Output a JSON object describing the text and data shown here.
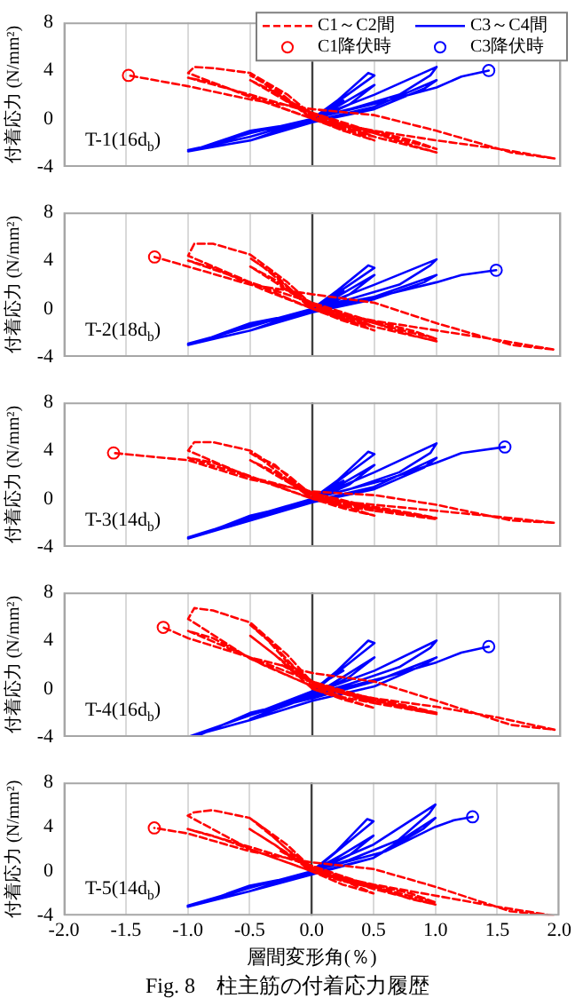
{
  "chart_data": [
    {
      "type": "line",
      "ylabel": "付着応力 (N/mm²)",
      "xlim": [
        -2,
        2
      ],
      "xticks": [
        -2,
        -1.5,
        -1,
        -0.5,
        0,
        0.5,
        1,
        1.5,
        2
      ],
      "ylim": [
        -4,
        8
      ],
      "yticks": [
        -4,
        0,
        4,
        8
      ],
      "grid": "x",
      "tick_labels": "y",
      "legend": "top right",
      "ref_lines": [
        {
          "axis": "x",
          "value": 0,
          "color": "#404040"
        }
      ],
      "annotations": [
        "T-1(16d$_{b}$)"
      ],
      "series": [
        {
          "name": "C1～C2間",
          "color": "#ff0000",
          "line_style": "dashed",
          "marker": "none",
          "x": [
            0,
            0.25,
            0.1,
            0,
            -0.25,
            -0.1,
            0,
            0.5,
            0.25,
            0,
            -0.3,
            -0.5,
            -0.4,
            -0.2,
            0,
            0.25,
            0.5,
            0.25,
            0,
            -0.3,
            -0.5,
            -0.3,
            0,
            0.5,
            1.0,
            0.8,
            0.5,
            0,
            -0.5,
            -1.0,
            -0.95,
            -0.8,
            -0.5,
            -0.2,
            0,
            0.5,
            1.0,
            0.8,
            0.4,
            0,
            -0.5,
            -1.0,
            -0.8,
            -0.4,
            0,
            0.5,
            1.0,
            1.5,
            1.95,
            1.6,
            1.0,
            0.5,
            0,
            -0.5,
            -1.0,
            -1.48
          ],
          "values": [
            0,
            -0.8,
            -0.3,
            0.3,
            1.8,
            1.0,
            0.5,
            -1.5,
            -0.9,
            0,
            2.5,
            3.6,
            3.0,
            1.5,
            0.4,
            -0.8,
            -1.8,
            -1.0,
            0,
            2.2,
            3.2,
            2.0,
            0.2,
            -1.5,
            -2.8,
            -2.2,
            -1.2,
            0,
            1.8,
            3.8,
            4.3,
            4.2,
            3.8,
            2.0,
            0.3,
            -1.2,
            -2.5,
            -1.8,
            -0.8,
            0.5,
            2.0,
            3.4,
            3.0,
            1.5,
            0,
            -1.0,
            -1.8,
            -2.5,
            -3.3,
            -2.8,
            -1.0,
            0.3,
            0.8,
            1.6,
            2.7,
            3.6
          ]
        },
        {
          "name": "C3～C4間",
          "color": "#0000ff",
          "line_style": "solid",
          "marker": "none",
          "x": [
            0,
            0.25,
            0.1,
            0,
            -0.25,
            0,
            0.5,
            0.45,
            0.2,
            0,
            -0.5,
            -0.2,
            0,
            0.5,
            0.3,
            0,
            -0.5,
            0,
            0.5,
            1.0,
            0.95,
            0.7,
            0.3,
            0,
            -0.5,
            -1.0,
            -0.9,
            -0.5,
            0,
            0.5,
            1.0,
            0.9,
            0.5,
            0,
            -0.5,
            -1.0,
            -0.5,
            0,
            0.6,
            1.0,
            1.2,
            1.42
          ],
          "values": [
            0,
            1.5,
            0.6,
            0,
            -0.8,
            -0.1,
            3.6,
            3.8,
            1.5,
            0,
            -1.5,
            -0.6,
            -0.2,
            2.8,
            1.2,
            -0.2,
            -1.8,
            0,
            2.0,
            4.3,
            3.6,
            2.0,
            0.8,
            0,
            -1.5,
            -2.6,
            -2.4,
            -1.0,
            -0.2,
            1.0,
            3.2,
            2.5,
            0.8,
            -0.3,
            -1.8,
            -2.7,
            -1.2,
            0,
            1.5,
            2.6,
            3.5,
            4.0
          ]
        },
        {
          "name": "C1降伏時",
          "type": "scatter",
          "color": "#ff0000",
          "marker": "circle",
          "x": [
            -1.48
          ],
          "values": [
            3.6
          ]
        },
        {
          "name": "C3降伏時",
          "type": "scatter",
          "color": "#0000ff",
          "marker": "circle",
          "x": [
            1.42
          ],
          "values": [
            4.0
          ]
        }
      ]
    },
    {
      "type": "line",
      "ylabel": "付着応力 (N/mm²)",
      "xlim": [
        -2,
        2
      ],
      "xticks": [
        -2,
        -1.5,
        -1,
        -0.5,
        0,
        0.5,
        1,
        1.5,
        2
      ],
      "ylim": [
        -4,
        8
      ],
      "yticks": [
        -4,
        0,
        4,
        8
      ],
      "grid": "x",
      "tick_labels": "y",
      "ref_lines": [
        {
          "axis": "x",
          "value": 0,
          "color": "#404040"
        }
      ],
      "annotations": [
        "T-2(18d$_{b}$)"
      ],
      "series": [
        {
          "color": "#ff0000",
          "line_style": "dashed",
          "marker": "none",
          "x": [
            0,
            0.25,
            0.1,
            0,
            -0.25,
            -0.1,
            0,
            0.5,
            0.25,
            0,
            -0.3,
            -0.5,
            -0.4,
            -0.2,
            0,
            0.25,
            0.5,
            0.25,
            0,
            -0.3,
            -0.5,
            -0.3,
            0,
            0.5,
            1.0,
            0.8,
            0.5,
            0,
            -0.5,
            -1.0,
            -0.95,
            -0.8,
            -0.5,
            -0.2,
            0,
            0.5,
            1.0,
            0.8,
            0.4,
            0,
            -0.5,
            -1.0,
            -0.8,
            -0.4,
            0,
            0.5,
            1.0,
            1.5,
            1.95,
            1.6,
            1.0,
            0.5,
            0,
            -0.5,
            -1.0,
            -1.27
          ],
          "values": [
            0,
            -0.8,
            -0.3,
            0.3,
            1.8,
            1.0,
            0.5,
            -1.5,
            -0.9,
            0,
            2.8,
            4.2,
            3.5,
            1.8,
            0.4,
            -0.8,
            -1.8,
            -1.0,
            0,
            2.4,
            3.5,
            2.2,
            0.2,
            -1.5,
            -2.7,
            -2.2,
            -1.2,
            0,
            2.2,
            4.4,
            5.4,
            5.4,
            4.5,
            2.2,
            0.3,
            -1.2,
            -2.5,
            -1.8,
            -0.8,
            0.5,
            2.2,
            4.0,
            3.4,
            1.6,
            0,
            -1.0,
            -1.8,
            -2.6,
            -3.4,
            -3.0,
            -1.2,
            0.5,
            1.2,
            2.0,
            3.5,
            4.3
          ]
        },
        {
          "color": "#0000ff",
          "line_style": "solid",
          "marker": "none",
          "x": [
            0,
            0.25,
            0.1,
            0,
            -0.25,
            0,
            0.5,
            0.45,
            0.2,
            0,
            -0.5,
            -0.2,
            0,
            0.5,
            0.3,
            0,
            -0.5,
            0,
            0.5,
            1.0,
            0.95,
            0.7,
            0.3,
            0,
            -0.5,
            -1.0,
            -0.9,
            -0.5,
            0,
            0.5,
            1.0,
            0.9,
            0.5,
            0,
            -0.5,
            -1.0,
            -0.5,
            0,
            0.6,
            1.0,
            1.2,
            1.48
          ],
          "values": [
            0,
            1.5,
            0.6,
            0,
            -0.8,
            -0.1,
            3.4,
            3.6,
            1.5,
            0,
            -1.5,
            -0.6,
            -0.2,
            2.8,
            1.2,
            -0.2,
            -1.8,
            0,
            2.0,
            4.1,
            3.6,
            2.0,
            0.8,
            0,
            -1.5,
            -2.9,
            -2.7,
            -1.2,
            -0.2,
            1.0,
            2.8,
            2.2,
            0.8,
            -0.3,
            -1.8,
            -3.0,
            -1.4,
            0,
            1.2,
            2.2,
            2.8,
            3.2
          ]
        },
        {
          "type": "scatter",
          "color": "#ff0000",
          "marker": "circle",
          "x": [
            -1.27
          ],
          "values": [
            4.3
          ]
        },
        {
          "type": "scatter",
          "color": "#0000ff",
          "marker": "circle",
          "x": [
            1.48
          ],
          "values": [
            3.2
          ]
        }
      ]
    },
    {
      "type": "line",
      "ylabel": "付着応力 (N/mm²)",
      "xlim": [
        -2,
        2
      ],
      "xticks": [
        -2,
        -1.5,
        -1,
        -0.5,
        0,
        0.5,
        1,
        1.5,
        2
      ],
      "ylim": [
        -4,
        8
      ],
      "yticks": [
        -4,
        0,
        4,
        8
      ],
      "grid": "x",
      "tick_labels": "y",
      "ref_lines": [
        {
          "axis": "x",
          "value": 0,
          "color": "#404040"
        }
      ],
      "annotations": [
        "T-3(14d$_{b}$)"
      ],
      "series": [
        {
          "color": "#ff0000",
          "line_style": "dashed",
          "marker": "none",
          "x": [
            0,
            0.25,
            0.1,
            0,
            -0.25,
            -0.1,
            0,
            0.5,
            0.25,
            0,
            -0.3,
            -0.5,
            -0.4,
            -0.2,
            0,
            0.25,
            0.5,
            0.25,
            0,
            -0.3,
            -0.5,
            -0.3,
            0,
            0.5,
            1.0,
            0.8,
            0.5,
            0,
            -0.5,
            -1.0,
            -0.95,
            -0.8,
            -0.5,
            -0.2,
            0,
            0.5,
            1.0,
            0.8,
            0.4,
            0,
            -0.5,
            -1.0,
            -0.8,
            -0.4,
            0,
            0.5,
            1.0,
            1.5,
            1.95,
            1.6,
            1.0,
            0.5,
            0,
            -0.5,
            -1.0,
            -1.6
          ],
          "values": [
            0,
            -0.6,
            -0.2,
            0.3,
            1.8,
            1.0,
            0.5,
            -1.0,
            -0.6,
            0,
            2.8,
            3.8,
            3.2,
            1.6,
            0.4,
            -0.6,
            -1.4,
            -0.8,
            0,
            2.2,
            3.2,
            2.0,
            0.2,
            -1.0,
            -1.7,
            -1.4,
            -0.8,
            0,
            1.8,
            4.0,
            4.7,
            4.7,
            4.0,
            2.0,
            0.3,
            -0.8,
            -1.6,
            -1.2,
            -0.5,
            0.5,
            1.8,
            3.4,
            3.0,
            1.5,
            0,
            -0.5,
            -1.0,
            -1.5,
            -2.0,
            -1.8,
            -0.5,
            0.3,
            0.6,
            1.6,
            3.2,
            3.8
          ]
        },
        {
          "color": "#0000ff",
          "line_style": "solid",
          "marker": "none",
          "x": [
            0,
            0.25,
            0.1,
            0,
            -0.25,
            0,
            0.5,
            0.45,
            0.2,
            0,
            -0.5,
            -0.2,
            0,
            0.5,
            0.3,
            0,
            -0.5,
            0,
            0.5,
            1.0,
            0.95,
            0.7,
            0.3,
            0,
            -0.5,
            -1.0,
            -0.9,
            -0.5,
            0,
            0.5,
            1.0,
            0.9,
            0.5,
            0,
            -0.5,
            -1.0,
            -0.5,
            0,
            0.6,
            1.0,
            1.2,
            1.55
          ],
          "values": [
            0,
            1.5,
            0.6,
            0,
            -0.8,
            -0.1,
            3.7,
            3.9,
            1.5,
            0,
            -1.5,
            -0.6,
            -0.2,
            2.8,
            1.2,
            -0.2,
            -1.8,
            0,
            2.2,
            4.6,
            3.8,
            2.2,
            0.8,
            0,
            -1.6,
            -3.2,
            -3.0,
            -1.4,
            -0.2,
            1.0,
            3.4,
            2.6,
            0.8,
            -0.3,
            -1.8,
            -3.3,
            -1.5,
            0,
            1.6,
            3.0,
            3.8,
            4.3
          ]
        },
        {
          "type": "scatter",
          "color": "#ff0000",
          "marker": "circle",
          "x": [
            -1.6
          ],
          "values": [
            3.8
          ]
        },
        {
          "type": "scatter",
          "color": "#0000ff",
          "marker": "circle",
          "x": [
            1.55
          ],
          "values": [
            4.3
          ]
        }
      ]
    },
    {
      "type": "line",
      "ylabel": "付着応力 (N/mm²)",
      "xlim": [
        -2,
        2
      ],
      "xticks": [
        -2,
        -1.5,
        -1,
        -0.5,
        0,
        0.5,
        1,
        1.5,
        2
      ],
      "ylim": [
        -4,
        8
      ],
      "yticks": [
        -4,
        0,
        4,
        8
      ],
      "grid": "x",
      "tick_labels": "y",
      "ref_lines": [
        {
          "axis": "x",
          "value": 0,
          "color": "#404040"
        }
      ],
      "annotations": [
        "T-4(16d$_{b}$)"
      ],
      "series": [
        {
          "color": "#ff0000",
          "line_style": "dashed",
          "marker": "none",
          "x": [
            0,
            0.25,
            0.1,
            0,
            -0.25,
            -0.1,
            0,
            0.5,
            0.25,
            0,
            -0.3,
            -0.5,
            -0.4,
            -0.2,
            0,
            0.25,
            0.5,
            0.25,
            0,
            -0.3,
            -0.5,
            -0.3,
            0,
            0.5,
            1.0,
            0.8,
            0.5,
            0,
            -0.5,
            -1.0,
            -0.95,
            -0.8,
            -0.5,
            -0.2,
            0,
            0.5,
            1.0,
            0.8,
            0.4,
            0,
            -0.5,
            -1.0,
            -0.8,
            -0.4,
            0,
            0.5,
            1.0,
            1.5,
            1.95,
            1.6,
            1.0,
            0.5,
            0,
            -0.5,
            -1.0,
            -1.2
          ],
          "values": [
            0,
            -0.8,
            -0.3,
            0.5,
            2.0,
            1.2,
            0.6,
            -1.2,
            -0.7,
            0.2,
            3.5,
            5.3,
            4.5,
            2.2,
            0.6,
            -0.8,
            -1.6,
            -0.9,
            0,
            2.8,
            4.4,
            2.8,
            0.4,
            -1.2,
            -2.1,
            -1.7,
            -1.0,
            0.2,
            2.5,
            5.8,
            6.7,
            6.5,
            5.5,
            2.8,
            0.5,
            -1.0,
            -2.0,
            -1.5,
            -0.6,
            0.6,
            2.6,
            4.8,
            4.2,
            2.0,
            0.2,
            -0.8,
            -1.5,
            -2.4,
            -3.4,
            -3.0,
            -1.0,
            0.6,
            1.3,
            2.6,
            4.2,
            5.1
          ]
        },
        {
          "color": "#0000ff",
          "line_style": "solid",
          "marker": "none",
          "x": [
            0,
            0.25,
            0.1,
            0,
            -0.25,
            0,
            0.5,
            0.45,
            0.2,
            0,
            -0.5,
            -0.2,
            0,
            0.5,
            0.3,
            0,
            -0.5,
            0,
            0.5,
            1.0,
            0.95,
            0.7,
            0.3,
            0,
            -0.5,
            -1.0,
            -0.9,
            -0.5,
            0,
            0.5,
            1.0,
            0.9,
            0.5,
            0,
            -0.5,
            -1.0,
            -0.5,
            0,
            0.6,
            1.0,
            1.2,
            1.42
          ],
          "values": [
            0,
            1.5,
            0.6,
            -0.2,
            -1.2,
            -0.3,
            3.8,
            4.0,
            1.5,
            -0.2,
            -2.2,
            -1.2,
            -0.6,
            2.6,
            1.0,
            -0.6,
            -2.5,
            -0.4,
            1.5,
            4.0,
            3.4,
            1.8,
            0.4,
            -0.5,
            -2.2,
            -4.0,
            -3.8,
            -2.0,
            -0.8,
            0.6,
            2.6,
            2.0,
            0.2,
            -1.0,
            -2.6,
            -4.0,
            -2.2,
            -0.6,
            1.0,
            2.2,
            3.0,
            3.5
          ]
        },
        {
          "type": "scatter",
          "color": "#ff0000",
          "marker": "circle",
          "x": [
            -1.2
          ],
          "values": [
            5.1
          ]
        },
        {
          "type": "scatter",
          "color": "#0000ff",
          "marker": "circle",
          "x": [
            1.42
          ],
          "values": [
            3.5
          ]
        }
      ]
    },
    {
      "type": "line",
      "ylabel": "付着応力 (N/mm²)",
      "xlabel": "層間変形角(％)",
      "xlim": [
        -2,
        2
      ],
      "xticks": [
        {
          "value": -2,
          "label": "-2.0"
        },
        {
          "value": -1.5,
          "label": "-1.5"
        },
        {
          "value": -1,
          "label": "-1.0"
        },
        {
          "value": -0.5,
          "label": "-0.5"
        },
        {
          "value": 0,
          "label": "0.0"
        },
        {
          "value": 0.5,
          "label": "0.5"
        },
        {
          "value": 1,
          "label": "1.0"
        },
        {
          "value": 1.5,
          "label": "1.5"
        },
        {
          "value": 2,
          "label": "2.0"
        }
      ],
      "ylim": [
        -4,
        8
      ],
      "yticks": [
        -4,
        0,
        4,
        8
      ],
      "grid": "x",
      "ref_lines": [
        {
          "axis": "x",
          "value": 0,
          "color": "#404040"
        }
      ],
      "annotations": [
        "T-5(14d$_{b}$)",
        "Fig. 8　柱主筋の付着応力履歴"
      ],
      "series": [
        {
          "color": "#ff0000",
          "line_style": "dashed",
          "marker": "none",
          "x": [
            0,
            0.25,
            0.1,
            0,
            -0.25,
            -0.1,
            0,
            0.5,
            0.25,
            0,
            -0.3,
            -0.5,
            -0.4,
            -0.2,
            0,
            0.25,
            0.5,
            0.25,
            0,
            -0.3,
            -0.5,
            -0.3,
            0,
            0.5,
            1.0,
            0.8,
            0.5,
            0,
            -0.5,
            -1.0,
            -0.95,
            -0.8,
            -0.5,
            -0.2,
            0,
            0.5,
            1.0,
            0.8,
            0.4,
            0,
            -0.5,
            -1.0,
            -0.8,
            -0.4,
            0,
            0.5,
            1.0,
            1.5,
            1.95,
            1.6,
            1.0,
            0.5,
            0,
            -0.5,
            -1.0,
            -1.27
          ],
          "values": [
            0,
            -0.8,
            -0.3,
            0.3,
            1.8,
            1.0,
            0.5,
            -1.5,
            -0.9,
            0,
            3.0,
            4.8,
            4.0,
            2.0,
            0.4,
            -0.8,
            -2.0,
            -1.2,
            0,
            2.4,
            3.8,
            2.4,
            0.2,
            -1.6,
            -3.0,
            -2.5,
            -1.4,
            0,
            2.0,
            5.0,
            5.3,
            5.5,
            4.8,
            2.4,
            0.3,
            -1.4,
            -2.8,
            -2.0,
            -1.0,
            0.5,
            2.2,
            3.8,
            3.2,
            1.6,
            0,
            -1.2,
            -2.2,
            -3.2,
            -4.0,
            -3.6,
            -1.4,
            0.2,
            0.8,
            1.8,
            3.4,
            3.9
          ]
        },
        {
          "color": "#0000ff",
          "line_style": "solid",
          "marker": "none",
          "x": [
            0,
            0.25,
            0.1,
            0,
            -0.25,
            0,
            0.5,
            0.45,
            0.2,
            0,
            -0.5,
            -0.2,
            0,
            0.5,
            0.3,
            0,
            -0.5,
            0,
            0.5,
            1.0,
            0.95,
            0.7,
            0.3,
            0,
            -0.5,
            -1.0,
            -0.9,
            -0.5,
            0,
            0.5,
            1.0,
            0.9,
            0.5,
            0,
            -0.5,
            -1.0,
            -0.5,
            0,
            0.6,
            1.0,
            1.15,
            1.3
          ],
          "values": [
            0,
            1.5,
            0.6,
            0,
            -0.8,
            -0.1,
            4.5,
            4.7,
            1.8,
            0,
            -1.5,
            -0.6,
            -0.2,
            3.2,
            1.4,
            -0.2,
            -1.8,
            0,
            2.4,
            6.0,
            5.2,
            2.8,
            1.0,
            0,
            -1.5,
            -3.1,
            -2.9,
            -1.3,
            -0.2,
            1.2,
            4.8,
            3.8,
            1.2,
            -0.3,
            -1.8,
            -3.2,
            -1.5,
            0,
            1.8,
            4.0,
            4.6,
            4.9
          ]
        },
        {
          "type": "scatter",
          "color": "#ff0000",
          "marker": "circle",
          "x": [
            -1.27
          ],
          "values": [
            3.9
          ]
        },
        {
          "type": "scatter",
          "color": "#0000ff",
          "marker": "circle",
          "x": [
            1.3
          ],
          "values": [
            4.9
          ]
        }
      ]
    }
  ]
}
